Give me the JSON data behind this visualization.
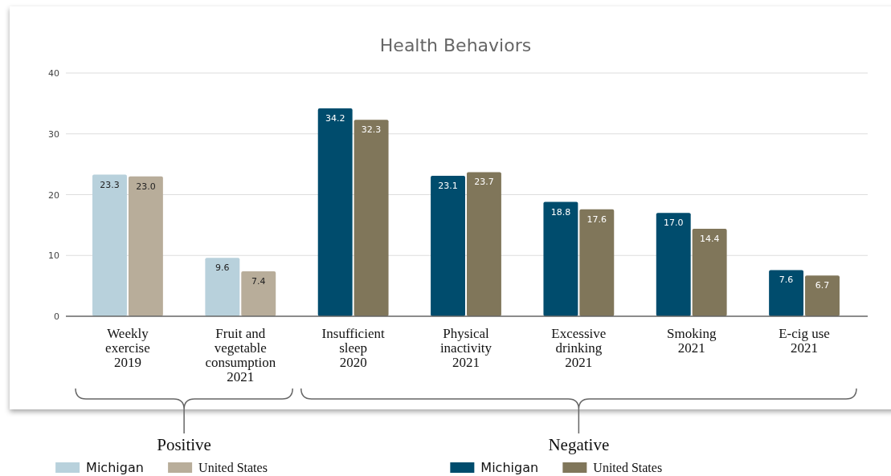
{
  "chart_data": {
    "type": "bar",
    "title": "Health Behaviors",
    "categories": [
      "Weekly\nexercise\n2019",
      "Fruit and\nvegetable\nconsumption\n2021",
      "Insufficient\nsleep\n2020",
      "Physical\ninactivity\n2021",
      "Excessive\ndrinking\n2021",
      "Smoking\n2021",
      "E-cig use\n2021"
    ],
    "series": [
      {
        "name": "Michigan",
        "colors": [
          "#b8d1dc",
          "#b8d1dc",
          "#004c6d",
          "#004c6d",
          "#004c6d",
          "#004c6d",
          "#004c6d"
        ],
        "values": [
          23.3,
          9.6,
          34.2,
          23.1,
          18.8,
          17.0,
          7.6
        ],
        "value_labels": [
          "23.3",
          "9.6",
          "34.2",
          "23.1",
          "18.8",
          "17.0",
          "7.6"
        ]
      },
      {
        "name": "United States",
        "colors": [
          "#b8ad9a",
          "#b8ad9a",
          "#80765a",
          "#80765a",
          "#80765a",
          "#80765a",
          "#80765a"
        ],
        "values": [
          23.0,
          7.4,
          32.3,
          23.7,
          17.6,
          14.4,
          6.7
        ],
        "value_labels": [
          "23.0",
          "7.4",
          "32.3",
          "23.7",
          "17.6",
          "14.4",
          "6.7"
        ]
      }
    ],
    "ylim": [
      0,
      40
    ],
    "yticks": [
      0,
      10,
      20,
      30,
      40
    ],
    "grid": "y",
    "legend": "bottom",
    "annotations": [
      "Positive",
      "Negative"
    ]
  }
}
